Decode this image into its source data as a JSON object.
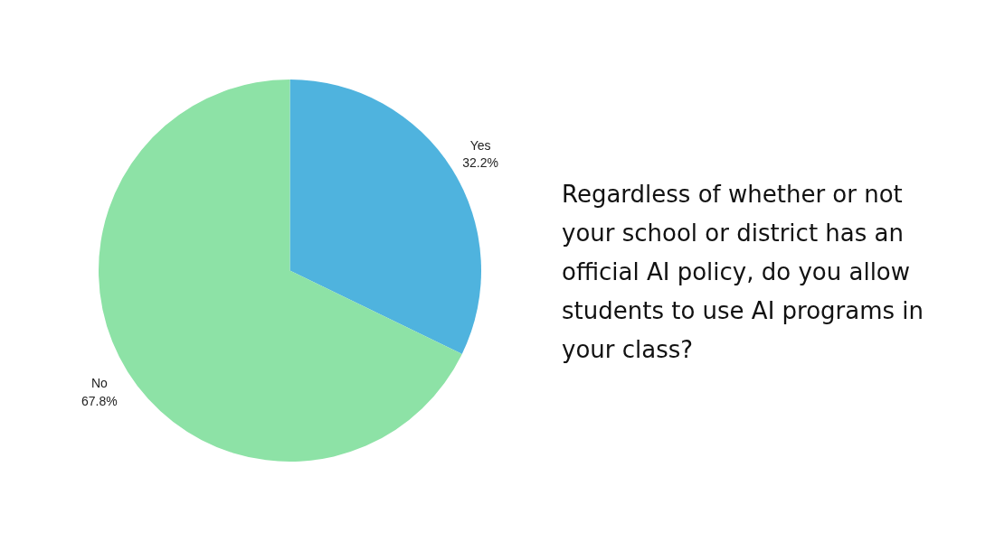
{
  "chart_data": {
    "type": "pie",
    "title": "Regardless of whether or not your school or district has an official AI policy, do you allow students to use AI programs in your class?",
    "categories": [
      "Yes",
      "No"
    ],
    "values": [
      32.2,
      67.8
    ],
    "colors": [
      "#4fb3de",
      "#8de2a6"
    ],
    "value_labels": [
      "32.2%",
      "67.8%"
    ],
    "legend": false
  }
}
